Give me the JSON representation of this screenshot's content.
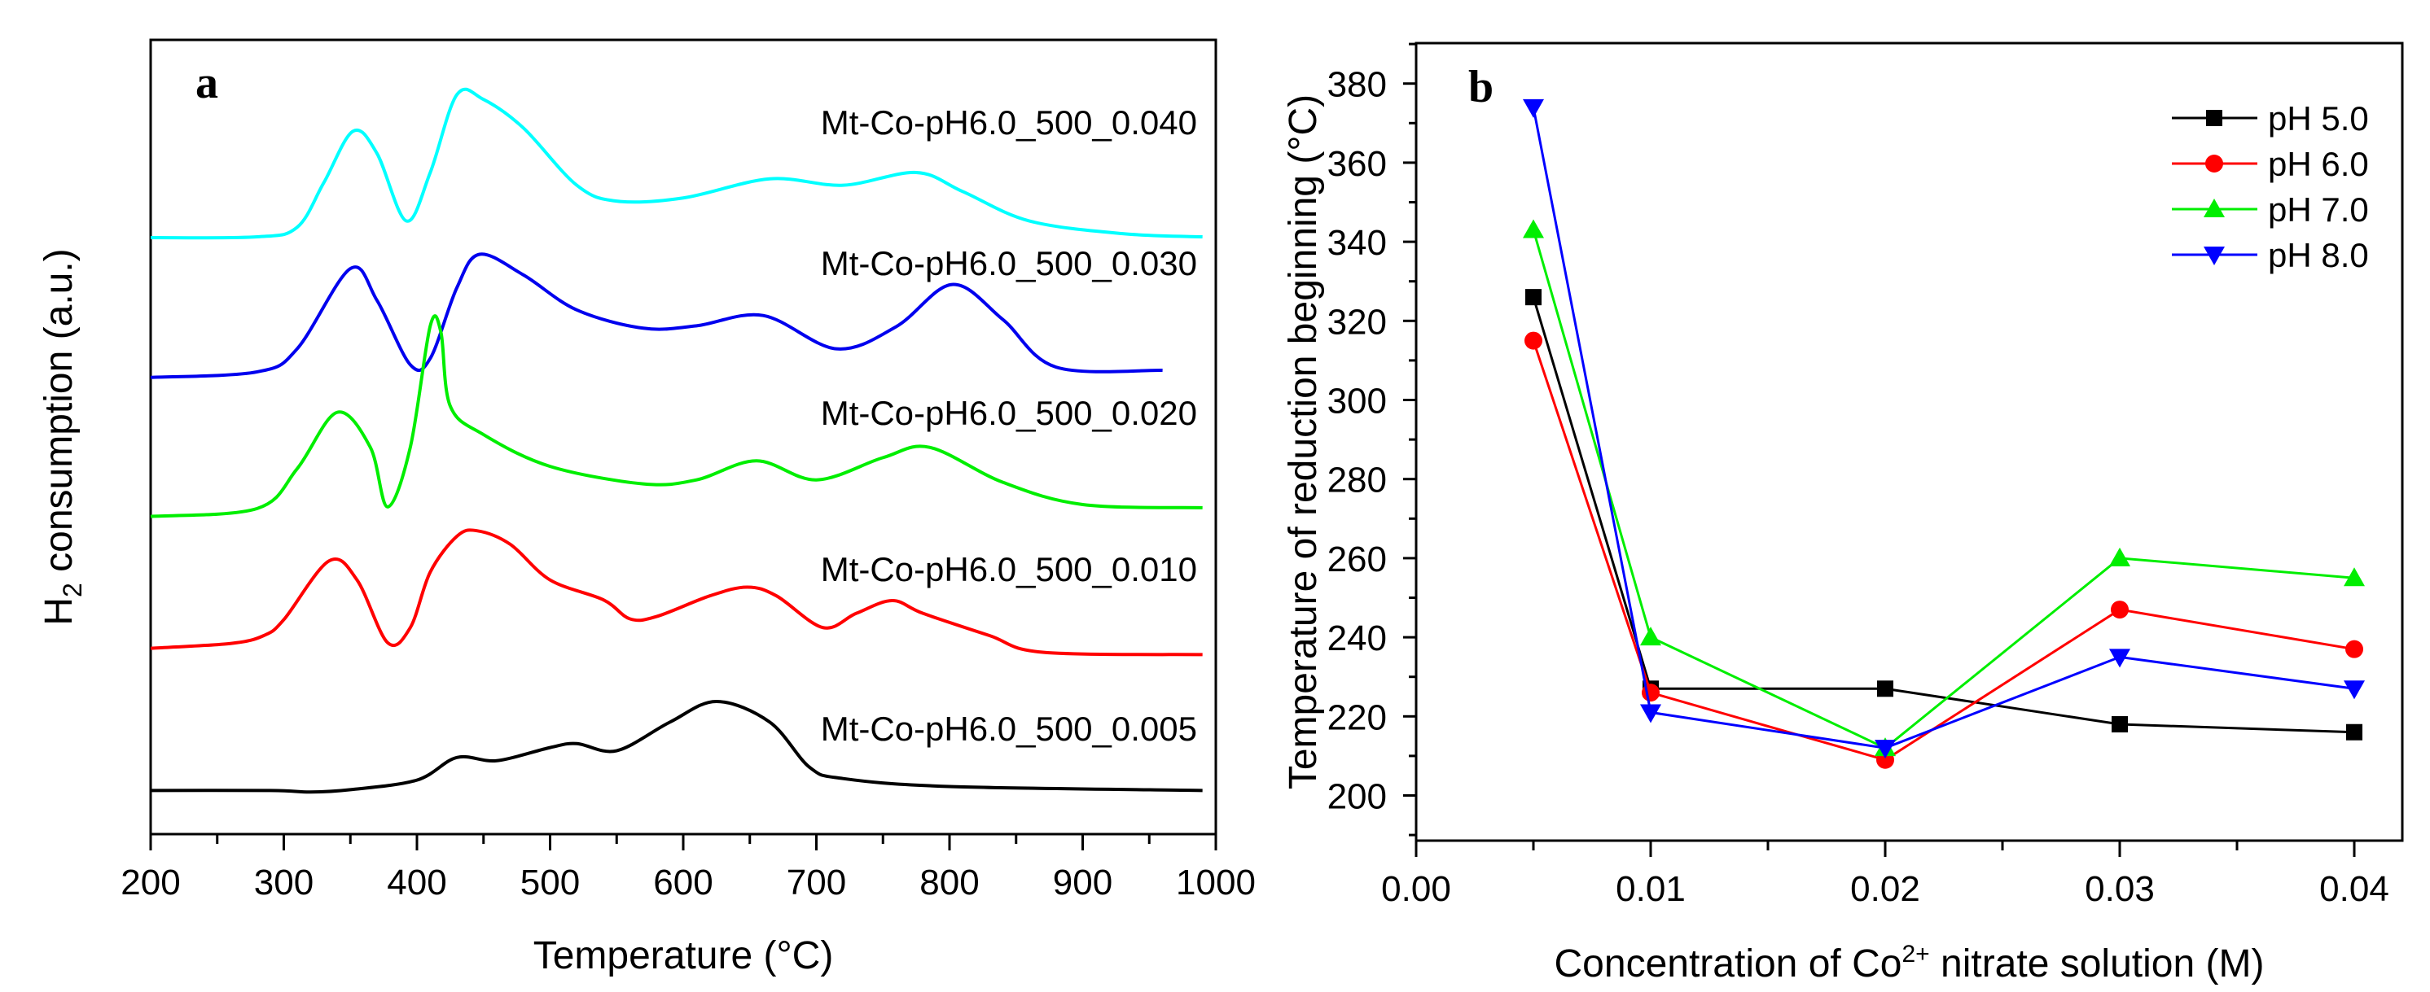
{
  "chart_data": [
    {
      "type": "line",
      "panel_label": "a",
      "title": "",
      "xlabel": "Temperature (°C)",
      "ylabel_main": "H",
      "ylabel_sub": "2",
      "ylabel_rest": " consumption (a.u.)",
      "xlim": [
        200,
        1000
      ],
      "ylim": [
        0,
        100
      ],
      "xticks": [
        "200",
        "300",
        "400",
        "500",
        "600",
        "700",
        "800",
        "900",
        "1000"
      ],
      "grid": false,
      "series": [
        {
          "name": "Mt-Co-pH6.0_500_0.040",
          "color": "#00ffff",
          "points": [
            [
              200,
              75.1
            ],
            [
              280,
              75.2
            ],
            [
              310,
              76.4
            ],
            [
              330,
              82
            ],
            [
              352,
              88.5
            ],
            [
              370,
              85.7
            ],
            [
              392,
              77.2
            ],
            [
              410,
              83.3
            ],
            [
              430,
              93.1
            ],
            [
              450,
              92.5
            ],
            [
              480,
              88.9
            ],
            [
              520,
              81.7
            ],
            [
              550,
              79.7
            ],
            [
              600,
              80.1
            ],
            [
              665,
              82.5
            ],
            [
              720,
              81.7
            ],
            [
              775,
              83.3
            ],
            [
              810,
              80.9
            ],
            [
              860,
              77.2
            ],
            [
              930,
              75.6
            ],
            [
              990,
              75.2
            ]
          ]
        },
        {
          "name": "Mt-Co-pH6.0_500_0.030",
          "color": "#0000ee",
          "points": [
            [
              200,
              57.5
            ],
            [
              280,
              58.2
            ],
            [
              310,
              61.1
            ],
            [
              350,
              71.2
            ],
            [
              370,
              67.2
            ],
            [
              395,
              59.1
            ],
            [
              410,
              59.9
            ],
            [
              430,
              68.8
            ],
            [
              447,
              73
            ],
            [
              480,
              70.4
            ],
            [
              520,
              66
            ],
            [
              570,
              63.7
            ],
            [
              610,
              64
            ],
            [
              660,
              65.3
            ],
            [
              715,
              61.1
            ],
            [
              760,
              63.9
            ],
            [
              802,
              69.2
            ],
            [
              840,
              64.8
            ],
            [
              880,
              58.8
            ],
            [
              960,
              58.4
            ]
          ]
        },
        {
          "name": "Mt-Co-pH6.0_500_0.020",
          "color": "#00ee00",
          "points": [
            [
              200,
              40
            ],
            [
              280,
              41
            ],
            [
              310,
              46
            ],
            [
              340,
              53.1
            ],
            [
              365,
              48.7
            ],
            [
              378,
              41.2
            ],
            [
              395,
              48.7
            ],
            [
              410,
              64
            ],
            [
              418,
              63.2
            ],
            [
              425,
              53.9
            ],
            [
              450,
              50.3
            ],
            [
              500,
              46.3
            ],
            [
              570,
              44.1
            ],
            [
              610,
              44.6
            ],
            [
              655,
              47
            ],
            [
              700,
              44.6
            ],
            [
              750,
              47.4
            ],
            [
              785,
              48.7
            ],
            [
              840,
              44.3
            ],
            [
              900,
              41.5
            ],
            [
              990,
              41.1
            ]
          ]
        },
        {
          "name": "Mt-Co-pH6.0_500_0.010",
          "color": "#ff0000",
          "points": [
            [
              200,
              23.4
            ],
            [
              260,
              24
            ],
            [
              285,
              25
            ],
            [
              300,
              27
            ],
            [
              334,
              34.4
            ],
            [
              355,
              32
            ],
            [
              378,
              24.1
            ],
            [
              395,
              26
            ],
            [
              410,
              33
            ],
            [
              430,
              37.5
            ],
            [
              445,
              38.2
            ],
            [
              470,
              36.5
            ],
            [
              500,
              32
            ],
            [
              540,
              29.5
            ],
            [
              560,
              27.1
            ],
            [
              580,
              27.4
            ],
            [
              620,
              30
            ],
            [
              648,
              31.1
            ],
            [
              670,
              30
            ],
            [
              705,
              26
            ],
            [
              730,
              27.8
            ],
            [
              757,
              29.4
            ],
            [
              780,
              27.8
            ],
            [
              830,
              25
            ],
            [
              870,
              22.9
            ],
            [
              990,
              22.6
            ]
          ]
        },
        {
          "name": "Mt-Co-pH6.0_500_0.005",
          "color": "#000000",
          "points": [
            [
              200,
              5.5
            ],
            [
              290,
              5.5
            ],
            [
              320,
              5.3
            ],
            [
              350,
              5.6
            ],
            [
              400,
              6.8
            ],
            [
              430,
              9.65
            ],
            [
              460,
              9.25
            ],
            [
              500,
              10.9
            ],
            [
              520,
              11.4
            ],
            [
              550,
              10.5
            ],
            [
              590,
              14.1
            ],
            [
              625,
              16.7
            ],
            [
              665,
              14.1
            ],
            [
              695,
              8.4
            ],
            [
              720,
              7
            ],
            [
              800,
              6
            ],
            [
              990,
              5.5
            ]
          ]
        }
      ]
    },
    {
      "type": "line",
      "panel_label": "b",
      "title": "",
      "xlabel_pre": "Concentration of Co",
      "xlabel_sup": "2+",
      "xlabel_post": " nitrate solution (M)",
      "ylabel": "Temperature of reduction beginning (°C)",
      "xlim": [
        0,
        0.042
      ],
      "ylim": [
        190,
        390
      ],
      "xticks": [
        "0.00",
        "0.01",
        "0.02",
        "0.03",
        "0.04"
      ],
      "yticks": [
        "200",
        "220",
        "240",
        "260",
        "280",
        "300",
        "320",
        "340",
        "360",
        "380"
      ],
      "grid": false,
      "legend_position": "top-right",
      "x": [
        0.005,
        0.01,
        0.02,
        0.03,
        0.04
      ],
      "series": [
        {
          "name": "pH 5.0",
          "color": "#000000",
          "marker": "square",
          "values": [
            326,
            227,
            227,
            218,
            216
          ]
        },
        {
          "name": "pH 6.0",
          "color": "#ff0000",
          "marker": "circle",
          "values": [
            315,
            226,
            209,
            247,
            237
          ]
        },
        {
          "name": "pH 7.0",
          "color": "#00ee00",
          "marker": "triangle-up",
          "values": [
            343,
            240,
            212,
            260,
            255
          ]
        },
        {
          "name": "pH 8.0",
          "color": "#0000ff",
          "marker": "triangle-down",
          "values": [
            374,
            221,
            212,
            235,
            227
          ]
        }
      ]
    }
  ]
}
